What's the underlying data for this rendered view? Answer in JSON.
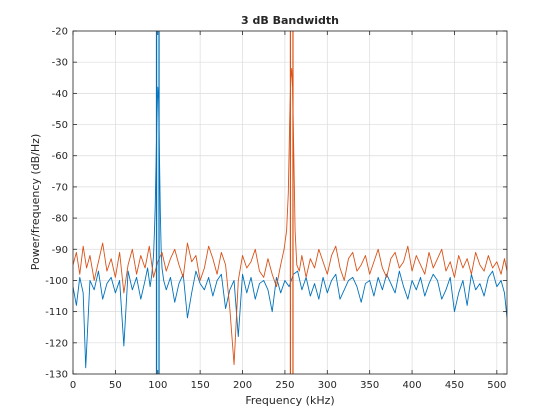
{
  "chart_data": {
    "type": "line",
    "title": "3 dB Bandwidth",
    "xlabel": "Frequency (kHz)",
    "ylabel": "Power/frequency (dB/Hz)",
    "xlim": [
      0,
      512
    ],
    "ylim": [
      -130,
      -20
    ],
    "xticks": [
      0,
      50,
      100,
      150,
      200,
      250,
      300,
      350,
      400,
      450,
      500
    ],
    "yticks": [
      -130,
      -120,
      -110,
      -100,
      -90,
      -80,
      -70,
      -60,
      -50,
      -40,
      -30,
      -20
    ],
    "grid": true,
    "legend": "none",
    "colors": {
      "series_1": "#0072bd",
      "series_2": "#d95319",
      "grid": "#dcdcdc",
      "axis": "#262626"
    },
    "series": [
      {
        "color": "#0072bd",
        "peak": {
          "x": 100,
          "y": -38
        },
        "bandwidth_markers_x": [
          98.5,
          101.5
        ],
        "x": [
          0,
          4,
          8,
          12,
          15,
          20,
          25,
          30,
          35,
          40,
          45,
          50,
          55,
          60,
          65,
          70,
          75,
          80,
          85,
          88,
          91,
          93,
          95,
          96,
          97,
          98,
          99,
          100,
          101,
          102,
          103,
          104,
          105,
          107,
          110,
          115,
          120,
          125,
          130,
          135,
          140,
          145,
          150,
          155,
          160,
          165,
          170,
          175,
          180,
          185,
          190,
          195,
          200,
          205,
          210,
          215,
          220,
          225,
          230,
          235,
          240,
          245,
          250,
          255,
          260,
          265,
          270,
          275,
          280,
          285,
          290,
          295,
          300,
          305,
          310,
          315,
          320,
          325,
          330,
          335,
          340,
          345,
          350,
          355,
          360,
          365,
          370,
          375,
          380,
          385,
          390,
          395,
          400,
          405,
          410,
          415,
          420,
          425,
          430,
          435,
          440,
          445,
          450,
          455,
          460,
          465,
          470,
          475,
          480,
          485,
          490,
          495,
          500,
          505,
          509,
          512
        ],
        "y": [
          -102,
          -108,
          -99,
          -104,
          -128,
          -100,
          -103,
          -97,
          -106,
          -101,
          -99,
          -104,
          -100,
          -121,
          -97,
          -103,
          -99,
          -106,
          -100,
          -96,
          -102,
          -98,
          -92,
          -85,
          -76,
          -62,
          -47,
          -38,
          -42,
          -60,
          -78,
          -90,
          -96,
          -100,
          -103,
          -99,
          -107,
          -101,
          -98,
          -112,
          -104,
          -97,
          -101,
          -103,
          -99,
          -105,
          -100,
          -98,
          -109,
          -103,
          -100,
          -118,
          -98,
          -104,
          -99,
          -106,
          -101,
          -100,
          -103,
          -110,
          -99,
          -104,
          -100,
          -102,
          -98,
          -97,
          -103,
          -99,
          -105,
          -101,
          -106,
          -99,
          -104,
          -100,
          -98,
          -106,
          -103,
          -100,
          -99,
          -102,
          -107,
          -101,
          -100,
          -105,
          -99,
          -103,
          -98,
          -101,
          -104,
          -97,
          -102,
          -106,
          -100,
          -103,
          -99,
          -105,
          -101,
          -98,
          -100,
          -106,
          -103,
          -99,
          -110,
          -104,
          -100,
          -108,
          -98,
          -103,
          -101,
          -105,
          -99,
          -97,
          -102,
          -100,
          -104,
          -112
        ]
      },
      {
        "color": "#d95319",
        "peak": {
          "x": 258,
          "y": -32
        },
        "bandwidth_markers_x": [
          256.5,
          259.5
        ],
        "x": [
          0,
          4,
          8,
          12,
          16,
          20,
          25,
          30,
          35,
          40,
          45,
          50,
          55,
          60,
          65,
          70,
          75,
          80,
          85,
          90,
          95,
          100,
          105,
          110,
          115,
          120,
          125,
          130,
          135,
          140,
          145,
          150,
          155,
          160,
          165,
          170,
          175,
          180,
          185,
          190,
          195,
          200,
          205,
          210,
          215,
          220,
          225,
          230,
          235,
          240,
          245,
          249,
          252,
          254,
          255,
          256,
          257,
          258,
          259,
          260,
          261,
          262,
          264,
          267,
          270,
          275,
          280,
          285,
          290,
          295,
          300,
          305,
          310,
          315,
          320,
          325,
          330,
          335,
          340,
          345,
          350,
          355,
          360,
          365,
          370,
          375,
          380,
          385,
          390,
          395,
          400,
          405,
          410,
          415,
          420,
          425,
          430,
          435,
          440,
          445,
          450,
          455,
          460,
          465,
          470,
          475,
          480,
          485,
          490,
          495,
          500,
          505,
          509,
          512
        ],
        "y": [
          -95,
          -91,
          -98,
          -89,
          -96,
          -92,
          -100,
          -94,
          -88,
          -97,
          -93,
          -99,
          -91,
          -104,
          -95,
          -90,
          -98,
          -92,
          -96,
          -89,
          -99,
          -94,
          -91,
          -97,
          -93,
          -90,
          -95,
          -99,
          -88,
          -94,
          -92,
          -100,
          -96,
          -89,
          -93,
          -98,
          -91,
          -95,
          -109,
          -127,
          -100,
          -92,
          -96,
          -94,
          -90,
          -97,
          -99,
          -93,
          -98,
          -102,
          -95,
          -90,
          -84,
          -72,
          -58,
          -44,
          -35,
          -32,
          -38,
          -52,
          -68,
          -84,
          -95,
          -97,
          -92,
          -99,
          -93,
          -96,
          -90,
          -94,
          -98,
          -92,
          -89,
          -96,
          -100,
          -93,
          -91,
          -97,
          -95,
          -92,
          -98,
          -94,
          -90,
          -96,
          -99,
          -93,
          -91,
          -96,
          -94,
          -89,
          -97,
          -92,
          -95,
          -98,
          -91,
          -96,
          -93,
          -90,
          -97,
          -94,
          -99,
          -92,
          -96,
          -93,
          -98,
          -91,
          -95,
          -97,
          -92,
          -96,
          -94,
          -98,
          -93,
          -97
        ]
      }
    ]
  }
}
